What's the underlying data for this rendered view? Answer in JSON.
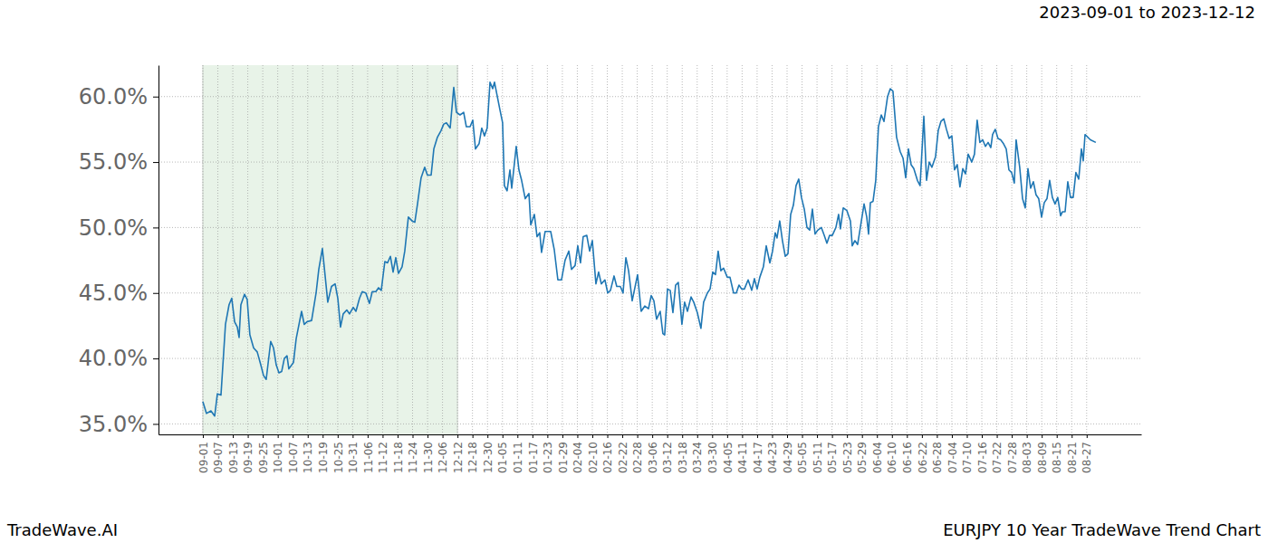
{
  "chart_data": {
    "type": "line",
    "title": "EURJPY 10 Year TradeWave Trend Chart",
    "subtitle": "2023-09-01 to 2023-12-12",
    "source": "TradeWave.AI",
    "grid": true,
    "highlight_x": [
      0,
      17
    ],
    "xlim": [
      -2.96,
      62.64
    ],
    "ylim": [
      34.2,
      62.4
    ],
    "yticks": [
      {
        "value": 35,
        "label": "35.0%"
      },
      {
        "value": 40,
        "label": "40.0%"
      },
      {
        "value": 45,
        "label": "45.0%"
      },
      {
        "value": 50,
        "label": "50.0%"
      },
      {
        "value": 55,
        "label": "55.0%"
      },
      {
        "value": 60,
        "label": "60.0%"
      }
    ],
    "xticks": [
      {
        "value": 0,
        "label": "09-01"
      },
      {
        "value": 1,
        "label": "09-07"
      },
      {
        "value": 2,
        "label": "09-13"
      },
      {
        "value": 3,
        "label": "09-19"
      },
      {
        "value": 4,
        "label": "09-25"
      },
      {
        "value": 5,
        "label": "10-01"
      },
      {
        "value": 6,
        "label": "10-07"
      },
      {
        "value": 7,
        "label": "10-13"
      },
      {
        "value": 8,
        "label": "10-19"
      },
      {
        "value": 9,
        "label": "10-25"
      },
      {
        "value": 10,
        "label": "10-31"
      },
      {
        "value": 11,
        "label": "11-06"
      },
      {
        "value": 12,
        "label": "11-12"
      },
      {
        "value": 13,
        "label": "11-18"
      },
      {
        "value": 14,
        "label": "11-24"
      },
      {
        "value": 15,
        "label": "11-30"
      },
      {
        "value": 16,
        "label": "12-06"
      },
      {
        "value": 17,
        "label": "12-12"
      },
      {
        "value": 18,
        "label": "12-18"
      },
      {
        "value": 19,
        "label": "12-30"
      },
      {
        "value": 20,
        "label": "01-05"
      },
      {
        "value": 21,
        "label": "01-11"
      },
      {
        "value": 22,
        "label": "01-17"
      },
      {
        "value": 23,
        "label": "01-23"
      },
      {
        "value": 24,
        "label": "01-29"
      },
      {
        "value": 25,
        "label": "02-04"
      },
      {
        "value": 26,
        "label": "02-10"
      },
      {
        "value": 27,
        "label": "02-16"
      },
      {
        "value": 28,
        "label": "02-22"
      },
      {
        "value": 29,
        "label": "02-28"
      },
      {
        "value": 30,
        "label": "03-06"
      },
      {
        "value": 31,
        "label": "03-12"
      },
      {
        "value": 32,
        "label": "03-18"
      },
      {
        "value": 33,
        "label": "03-24"
      },
      {
        "value": 34,
        "label": "03-30"
      },
      {
        "value": 35,
        "label": "04-05"
      },
      {
        "value": 36,
        "label": "04-11"
      },
      {
        "value": 37,
        "label": "04-17"
      },
      {
        "value": 38,
        "label": "04-23"
      },
      {
        "value": 39,
        "label": "04-29"
      },
      {
        "value": 40,
        "label": "05-05"
      },
      {
        "value": 41,
        "label": "05-11"
      },
      {
        "value": 42,
        "label": "05-17"
      },
      {
        "value": 43,
        "label": "05-23"
      },
      {
        "value": 44,
        "label": "05-29"
      },
      {
        "value": 45,
        "label": "06-04"
      },
      {
        "value": 46,
        "label": "06-10"
      },
      {
        "value": 47,
        "label": "06-16"
      },
      {
        "value": 48,
        "label": "06-22"
      },
      {
        "value": 49,
        "label": "06-28"
      },
      {
        "value": 50,
        "label": "07-04"
      },
      {
        "value": 51,
        "label": "07-10"
      },
      {
        "value": 52,
        "label": "07-16"
      },
      {
        "value": 53,
        "label": "07-22"
      },
      {
        "value": 54,
        "label": "07-28"
      },
      {
        "value": 55,
        "label": "08-03"
      },
      {
        "value": 56,
        "label": "08-09"
      },
      {
        "value": 57,
        "label": "08-15"
      },
      {
        "value": 58,
        "label": "08-21"
      },
      {
        "value": 59,
        "label": "08-27"
      }
    ],
    "x": [
      0,
      0.24,
      0.54,
      0.79,
      0.97,
      1.21,
      1.51,
      1.75,
      1.93,
      2.12,
      2.3,
      2.42,
      2.54,
      2.78,
      2.96,
      3.14,
      3.39,
      3.63,
      3.87,
      4.05,
      4.23,
      4.53,
      4.72,
      4.9,
      5.08,
      5.26,
      5.44,
      5.62,
      5.74,
      6.05,
      6.23,
      6.59,
      6.77,
      6.95,
      7.26,
      7.56,
      7.74,
      7.98,
      8.34,
      8.59,
      8.83,
      9.01,
      9.19,
      9.37,
      9.61,
      9.79,
      10.04,
      10.22,
      10.46,
      10.64,
      10.88,
      11.12,
      11.31,
      11.55,
      11.73,
      11.91,
      12.15,
      12.33,
      12.52,
      12.7,
      12.88,
      13.06,
      13.3,
      13.48,
      13.72,
      13.97,
      14.15,
      14.33,
      14.57,
      14.81,
      14.99,
      15.24,
      15.42,
      15.66,
      15.9,
      16.08,
      16.26,
      16.51,
      16.75,
      16.93,
      17.17,
      17.41,
      17.59,
      17.84,
      18.02,
      18.2,
      18.44,
      18.62,
      18.8,
      18.98,
      19.17,
      19.35,
      19.47,
      19.83,
      20.01,
      20.13,
      20.31,
      20.5,
      20.62,
      20.92,
      21.1,
      21.28,
      21.52,
      21.77,
      21.89,
      22.13,
      22.31,
      22.49,
      22.61,
      22.85,
      23.22,
      23.46,
      23.7,
      23.94,
      24.18,
      24.43,
      24.61,
      24.85,
      25.03,
      25.21,
      25.39,
      25.63,
      25.82,
      26.0,
      26.24,
      26.42,
      26.6,
      26.84,
      27.03,
      27.21,
      27.45,
      27.63,
      27.87,
      28.05,
      28.24,
      28.42,
      28.66,
      29.02,
      29.26,
      29.5,
      29.75,
      29.93,
      30.11,
      30.29,
      30.53,
      30.71,
      30.83,
      31.02,
      31.2,
      31.38,
      31.56,
      31.74,
      31.98,
      32.16,
      32.35,
      32.59,
      32.77,
      33.01,
      33.25,
      33.43,
      33.68,
      33.86,
      34.04,
      34.22,
      34.4,
      34.58,
      34.76,
      35.01,
      35.19,
      35.43,
      35.61,
      35.79,
      35.97,
      36.15,
      36.4,
      36.64,
      36.82,
      37.0,
      37.18,
      37.42,
      37.61,
      37.85,
      38.03,
      38.21,
      38.33,
      38.51,
      38.69,
      38.88,
      39.06,
      39.24,
      39.42,
      39.6,
      39.78,
      39.96,
      40.15,
      40.33,
      40.51,
      40.69,
      40.87,
      41.05,
      41.29,
      41.48,
      41.66,
      41.84,
      42.02,
      42.26,
      42.44,
      42.56,
      42.75,
      42.99,
      43.23,
      43.35,
      43.53,
      43.71,
      43.96,
      44.14,
      44.32,
      44.44,
      44.56,
      44.74,
      44.92,
      45.1,
      45.29,
      45.47,
      45.71,
      45.89,
      46.07,
      46.31,
      46.55,
      46.74,
      46.92,
      47.1,
      47.28,
      47.46,
      47.7,
      47.88,
      48.13,
      48.31,
      48.49,
      48.67,
      48.91,
      49.09,
      49.27,
      49.46,
      49.64,
      49.82,
      50.0,
      50.18,
      50.36,
      50.54,
      50.73,
      50.91,
      51.09,
      51.33,
      51.51,
      51.69,
      51.87,
      52.06,
      52.24,
      52.42,
      52.6,
      52.72,
      52.9,
      53.08,
      53.26,
      53.45,
      53.63,
      53.81,
      53.99,
      54.17,
      54.29,
      54.53,
      54.72,
      54.9,
      55.08,
      55.26,
      55.44,
      55.62,
      55.8,
      55.99,
      56.17,
      56.35,
      56.53,
      56.71,
      56.89,
      57.07,
      57.26,
      57.38,
      57.56,
      57.74,
      57.92,
      58.1,
      58.28,
      58.47,
      58.65,
      58.77,
      58.89,
      59.25,
      59.61
    ],
    "series": [
      {
        "color": "#1f77b4",
        "values": [
          36.7,
          35.8,
          36.0,
          35.6,
          37.3,
          37.2,
          42.6,
          44.1,
          44.6,
          42.8,
          42.4,
          41.6,
          44.1,
          44.9,
          44.5,
          41.8,
          40.8,
          40.5,
          39.5,
          38.7,
          38.4,
          41.3,
          40.8,
          39.5,
          38.9,
          39.0,
          40.0,
          40.2,
          39.2,
          39.7,
          41.5,
          43.6,
          42.6,
          42.8,
          42.9,
          45.0,
          46.8,
          48.4,
          44.3,
          45.5,
          45.7,
          44.6,
          42.4,
          43.4,
          43.7,
          43.4,
          43.9,
          43.6,
          44.6,
          45.1,
          45.0,
          44.2,
          45.1,
          45.1,
          45.4,
          45.2,
          47.4,
          47.3,
          47.8,
          46.6,
          47.7,
          46.5,
          47.0,
          48.2,
          50.8,
          50.5,
          50.4,
          51.8,
          53.8,
          54.6,
          54.0,
          54.0,
          56.0,
          56.9,
          57.4,
          57.9,
          58.0,
          57.6,
          60.7,
          58.8,
          58.6,
          58.8,
          57.7,
          57.7,
          58.2,
          56.0,
          56.4,
          57.6,
          57.0,
          57.6,
          61.1,
          60.6,
          61.1,
          59.0,
          58.0,
          53.2,
          52.8,
          54.4,
          53.0,
          56.2,
          54.4,
          53.6,
          52.2,
          52.6,
          50.2,
          51.0,
          49.3,
          49.6,
          48.1,
          49.7,
          49.7,
          48.3,
          46.0,
          46.0,
          47.5,
          48.2,
          46.8,
          47.1,
          48.6,
          47.3,
          49.3,
          49.4,
          48.2,
          49.0,
          45.7,
          46.6,
          45.7,
          46.0,
          45.0,
          45.2,
          46.3,
          45.5,
          45.5,
          45.0,
          47.7,
          46.7,
          44.4,
          46.4,
          43.6,
          44.0,
          43.8,
          44.8,
          44.4,
          43.0,
          43.6,
          41.9,
          41.8,
          45.3,
          45.2,
          43.5,
          45.6,
          45.8,
          42.6,
          44.3,
          43.6,
          44.7,
          44.3,
          43.5,
          42.3,
          44.3,
          45.0,
          45.3,
          46.6,
          46.4,
          48.2,
          46.7,
          46.9,
          46.2,
          46.2,
          45.0,
          45.0,
          45.6,
          45.3,
          45.3,
          46.0,
          45.2,
          46.1,
          45.3,
          46.2,
          47.0,
          48.6,
          47.3,
          48.2,
          49.6,
          49.2,
          50.5,
          49.0,
          47.8,
          48.0,
          51.0,
          51.7,
          53.2,
          53.7,
          52.3,
          51.4,
          50.0,
          49.8,
          51.4,
          49.5,
          49.8,
          50.0,
          49.4,
          48.8,
          49.4,
          49.4,
          50.0,
          51.0,
          49.9,
          51.5,
          51.3,
          50.5,
          48.6,
          49.0,
          48.7,
          50.5,
          51.8,
          50.8,
          49.5,
          51.9,
          52.0,
          53.6,
          57.7,
          58.6,
          58.1,
          60.0,
          60.6,
          60.4,
          56.9,
          55.8,
          55.3,
          53.8,
          56.0,
          54.8,
          54.5,
          53.6,
          53.2,
          58.5,
          53.6,
          55.0,
          54.6,
          55.4,
          57.4,
          58.1,
          58.3,
          57.5,
          56.8,
          57.0,
          54.4,
          54.8,
          53.1,
          54.5,
          54.1,
          55.6,
          55.0,
          55.6,
          58.2,
          56.5,
          56.7,
          56.2,
          56.5,
          56.1,
          57.1,
          57.5,
          56.8,
          56.7,
          56.4,
          56.0,
          54.4,
          54.2,
          53.4,
          56.7,
          54.6,
          52.2,
          51.5,
          54.5,
          53.0,
          53.5,
          52.5,
          52.2,
          50.8,
          51.9,
          52.2,
          53.6,
          52.3,
          51.8,
          52.3,
          50.9,
          51.2,
          51.2,
          53.5,
          52.3,
          52.3,
          54.2,
          53.7,
          56.0,
          55.1,
          57.1,
          56.7,
          56.5
        ]
      }
    ]
  }
}
